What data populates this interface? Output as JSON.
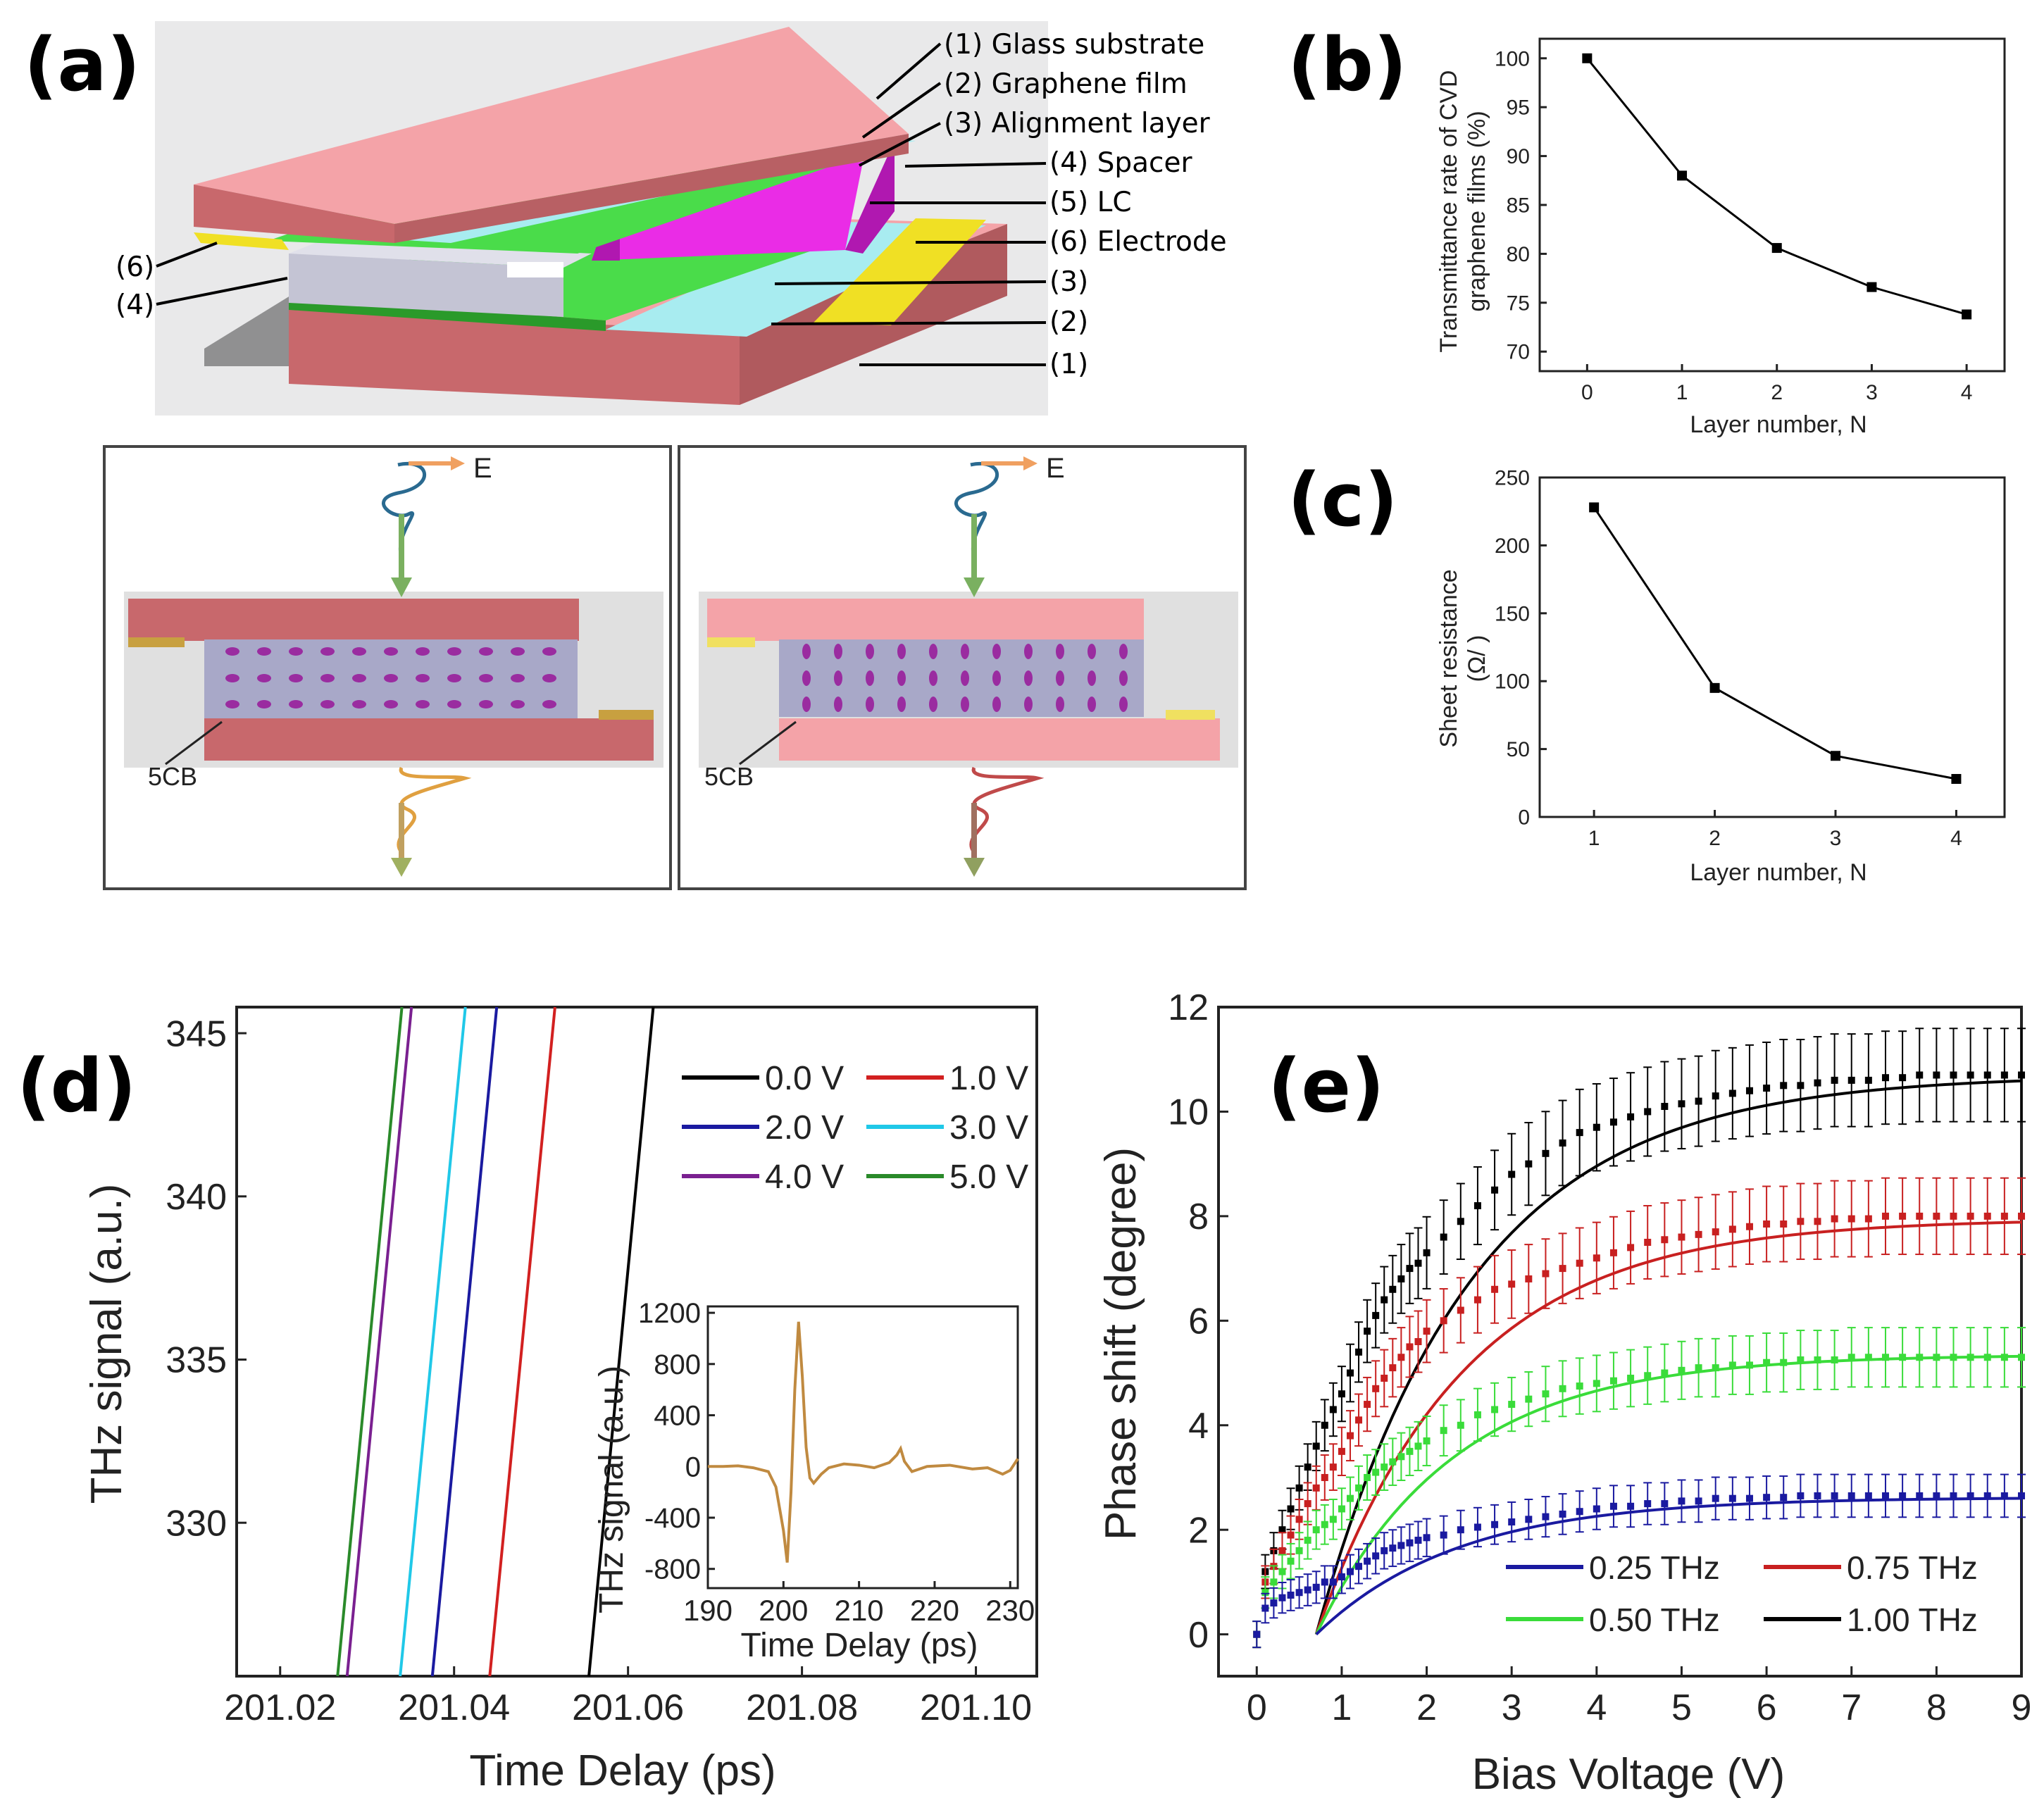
{
  "panel_labels": {
    "a": "(a)",
    "b": "(b)",
    "c": "(c)",
    "d": "(d)",
    "e": "(e)"
  },
  "schematic": {
    "callouts_right": [
      "(1) Glass substrate",
      "(2) Graphene film",
      "(3) Alignment layer",
      "(4) Spacer",
      "(5) LC",
      "(6) Electrode",
      "(3)",
      "(2)",
      "(1)"
    ],
    "callouts_left": [
      "(6)",
      "(4)"
    ],
    "field_label": "E",
    "lc_label": "5CB",
    "colors": {
      "glass": "#f4a3a8",
      "glass_side": "#c8686c",
      "graphene": "#4adc4a",
      "lc": "#ea2ce6",
      "spacer": "#c4c4d4",
      "electrode": "#f0e024",
      "film": "#a8ecf0"
    }
  },
  "chart_b": {
    "ylabel_line1": "Transmittance rate of CVD",
    "ylabel_line2": "graphene films (%)",
    "xlabel": "Layer number, N",
    "xticks": [
      "0",
      "1",
      "2",
      "3",
      "4"
    ],
    "yticks": [
      "70",
      "75",
      "80",
      "85",
      "90",
      "95",
      "100"
    ]
  },
  "chart_c": {
    "ylabel_line1": "Sheet resistance",
    "ylabel_line2": "(Ω/  )",
    "xlabel": "Layer number, N",
    "xticks": [
      "1",
      "2",
      "3",
      "4"
    ],
    "yticks": [
      "0",
      "50",
      "100",
      "150",
      "200",
      "250"
    ]
  },
  "chart_d": {
    "ylabel": "THz signal (a.u.)",
    "xlabel": "Time Delay (ps)",
    "xticks": [
      "201.02",
      "201.04",
      "201.06",
      "201.08",
      "201.10"
    ],
    "yticks": [
      "330",
      "335",
      "340",
      "345"
    ],
    "inset": {
      "ylabel": "THz signal (a.u.)",
      "xlabel": "Time Delay (ps)",
      "xticks": [
        "190",
        "200",
        "210",
        "220",
        "230"
      ],
      "yticks": [
        "-800",
        "-400",
        "0",
        "400",
        "800",
        "1200"
      ]
    }
  },
  "chart_e": {
    "ylabel": "Phase shift (degree)",
    "xlabel": "Bias Voltage (V)",
    "xticks": [
      "0",
      "1",
      "2",
      "3",
      "4",
      "5",
      "6",
      "7",
      "8",
      "9"
    ],
    "yticks": [
      "0",
      "2",
      "4",
      "6",
      "8",
      "10",
      "12"
    ]
  },
  "chart_data": [
    {
      "type": "line",
      "panel": "b",
      "x": [
        0,
        1,
        2,
        3,
        4
      ],
      "series": [
        {
          "values": [
            100,
            88,
            80.6,
            76.6,
            73.8
          ],
          "color": "#000000"
        }
      ],
      "xlabel": "Layer number, N",
      "ylabel": "Transmittance rate of CVD graphene films (%)",
      "xlim": [
        -0.5,
        4.4
      ],
      "ylim": [
        68,
        102
      ],
      "grid": false
    },
    {
      "type": "line",
      "panel": "c",
      "x": [
        1,
        2,
        3,
        4
      ],
      "series": [
        {
          "values": [
            228,
            95,
            45,
            28
          ],
          "color": "#000000"
        }
      ],
      "xlabel": "Layer number, N",
      "ylabel": "Sheet resistance (Ω/ )",
      "xlim": [
        0.55,
        4.4
      ],
      "ylim": [
        0,
        250
      ],
      "grid": false
    },
    {
      "type": "line",
      "panel": "d",
      "xlabel": "Time Delay (ps)",
      "ylabel": "THz signal (a.u.)",
      "xlim": [
        201.015,
        201.107
      ],
      "ylim": [
        325.3,
        345.8
      ],
      "legend_position": "top-right",
      "grid": false,
      "series": [
        {
          "name": "0.0 V",
          "color": "#000000",
          "x": [
            201.0555,
            201.0629
          ],
          "values": [
            325.3,
            345.8
          ]
        },
        {
          "name": "1.0 V",
          "color": "#d22020",
          "x": [
            201.0441,
            201.0516
          ],
          "values": [
            325.3,
            345.8
          ]
        },
        {
          "name": "2.0 V",
          "color": "#1a1aa0",
          "x": [
            201.0375,
            201.0449
          ],
          "values": [
            325.3,
            345.8
          ]
        },
        {
          "name": "3.0 V",
          "color": "#20c8e8",
          "x": [
            201.0338,
            201.0413
          ],
          "values": [
            325.3,
            345.8
          ]
        },
        {
          "name": "4.0 V",
          "color": "#7a2090",
          "x": [
            201.0277,
            201.0351
          ],
          "values": [
            325.3,
            345.8
          ]
        },
        {
          "name": "5.0 V",
          "color": "#2a8a2a",
          "x": [
            201.0266,
            201.034
          ],
          "values": [
            325.3,
            345.8
          ]
        }
      ],
      "inset": {
        "type": "line",
        "xlabel": "Time Delay (ps)",
        "ylabel": "THz signal (a.u.)",
        "xlim": [
          190,
          231
        ],
        "ylim": [
          -950,
          1250
        ],
        "series": [
          {
            "color": "#c08a40",
            "x": [
              190,
              192,
              194,
              196,
              198,
              199,
              200,
              200.5,
              201,
              201.5,
              202,
              202.5,
              203,
              203.5,
              204,
              205,
              206,
              208,
              210,
              212,
              214,
              215,
              215.5,
              216,
              217,
              219,
              222,
              225,
              227,
              229,
              230,
              231
            ],
            "values": [
              0,
              0,
              5,
              -10,
              -40,
              -160,
              -500,
              -750,
              -200,
              600,
              1130,
              700,
              150,
              -90,
              -130,
              -60,
              -10,
              20,
              10,
              -10,
              30,
              90,
              140,
              40,
              -40,
              0,
              10,
              -20,
              -10,
              -60,
              -30,
              60
            ]
          }
        ]
      }
    },
    {
      "type": "scatter",
      "panel": "e",
      "xlabel": "Bias Voltage (V)",
      "ylabel": "Phase shift (degree)",
      "xlim": [
        -0.45,
        9
      ],
      "ylim": [
        -0.8,
        12
      ],
      "legend_position": "bottom-right",
      "grid": false,
      "x": [
        0,
        0.1,
        0.2,
        0.3,
        0.4,
        0.5,
        0.6,
        0.7,
        0.8,
        0.9,
        1.0,
        1.1,
        1.2,
        1.3,
        1.4,
        1.5,
        1.6,
        1.7,
        1.8,
        1.9,
        2.0,
        2.2,
        2.4,
        2.6,
        2.8,
        3.0,
        3.2,
        3.4,
        3.6,
        3.8,
        4.0,
        4.2,
        4.4,
        4.6,
        4.8,
        5.0,
        5.2,
        5.4,
        5.6,
        5.8,
        6.0,
        6.2,
        6.4,
        6.6,
        6.8,
        7.0,
        7.2,
        7.4,
        7.6,
        7.8,
        8.0,
        8.2,
        8.4,
        8.6,
        8.8,
        9.0
      ],
      "series": [
        {
          "name": "0.25 THz",
          "color": "#1a1aa0",
          "values": [
            0,
            0.5,
            0.6,
            0.7,
            0.75,
            0.8,
            0.85,
            0.9,
            1.0,
            1.0,
            1.1,
            1.2,
            1.3,
            1.4,
            1.5,
            1.6,
            1.65,
            1.7,
            1.75,
            1.8,
            1.85,
            1.9,
            2.0,
            2.05,
            2.1,
            2.15,
            2.2,
            2.25,
            2.3,
            2.35,
            2.4,
            2.45,
            2.45,
            2.5,
            2.5,
            2.55,
            2.55,
            2.6,
            2.6,
            2.6,
            2.62,
            2.62,
            2.65,
            2.65,
            2.65,
            2.65,
            2.65,
            2.65,
            2.65,
            2.65,
            2.65,
            2.65,
            2.65,
            2.65,
            2.65,
            2.65
          ],
          "fit_k": 0.6,
          "fit_max": 2.62
        },
        {
          "name": "0.50 THz",
          "color": "#3adc3a",
          "values": [
            0,
            0.8,
            1.0,
            1.2,
            1.4,
            1.6,
            1.8,
            2.0,
            2.1,
            2.2,
            2.4,
            2.6,
            2.8,
            3.0,
            3.1,
            3.2,
            3.3,
            3.4,
            3.5,
            3.6,
            3.7,
            3.9,
            4.0,
            4.2,
            4.3,
            4.4,
            4.5,
            4.6,
            4.7,
            4.75,
            4.8,
            4.85,
            4.9,
            4.95,
            5.0,
            5.05,
            5.1,
            5.1,
            5.15,
            5.15,
            5.2,
            5.2,
            5.25,
            5.25,
            5.25,
            5.3,
            5.3,
            5.3,
            5.3,
            5.3,
            5.3,
            5.3,
            5.3,
            5.3,
            5.3,
            5.3
          ],
          "fit_k": 0.62,
          "fit_max": 5.35
        },
        {
          "name": "0.75 THz",
          "color": "#c82020",
          "values": [
            0,
            1.0,
            1.3,
            1.6,
            1.9,
            2.2,
            2.5,
            2.8,
            3.0,
            3.2,
            3.5,
            3.8,
            4.1,
            4.4,
            4.7,
            4.9,
            5.1,
            5.3,
            5.5,
            5.6,
            5.8,
            6.0,
            6.2,
            6.4,
            6.6,
            6.7,
            6.8,
            6.9,
            7.0,
            7.1,
            7.2,
            7.3,
            7.4,
            7.5,
            7.55,
            7.6,
            7.65,
            7.7,
            7.75,
            7.8,
            7.85,
            7.85,
            7.9,
            7.9,
            7.95,
            7.95,
            7.95,
            8.0,
            8.0,
            8.0,
            8.0,
            8.0,
            8.0,
            8.0,
            8.0,
            8.0
          ],
          "fit_k": 0.58,
          "fit_max": 7.95
        },
        {
          "name": "1.00 THz",
          "color": "#000000",
          "values": [
            0,
            1.2,
            1.6,
            2.0,
            2.4,
            2.8,
            3.2,
            3.6,
            4.0,
            4.3,
            4.6,
            5.0,
            5.4,
            5.8,
            6.1,
            6.4,
            6.6,
            6.8,
            7.0,
            7.1,
            7.3,
            7.6,
            7.9,
            8.2,
            8.5,
            8.8,
            9.0,
            9.2,
            9.4,
            9.6,
            9.7,
            9.8,
            9.9,
            10.0,
            10.1,
            10.15,
            10.2,
            10.3,
            10.35,
            10.4,
            10.45,
            10.5,
            10.5,
            10.55,
            10.6,
            10.6,
            10.6,
            10.65,
            10.65,
            10.7,
            10.7,
            10.7,
            10.7,
            10.7,
            10.7,
            10.7
          ],
          "fit_k": 0.55,
          "fit_max": 10.7
        }
      ]
    }
  ]
}
